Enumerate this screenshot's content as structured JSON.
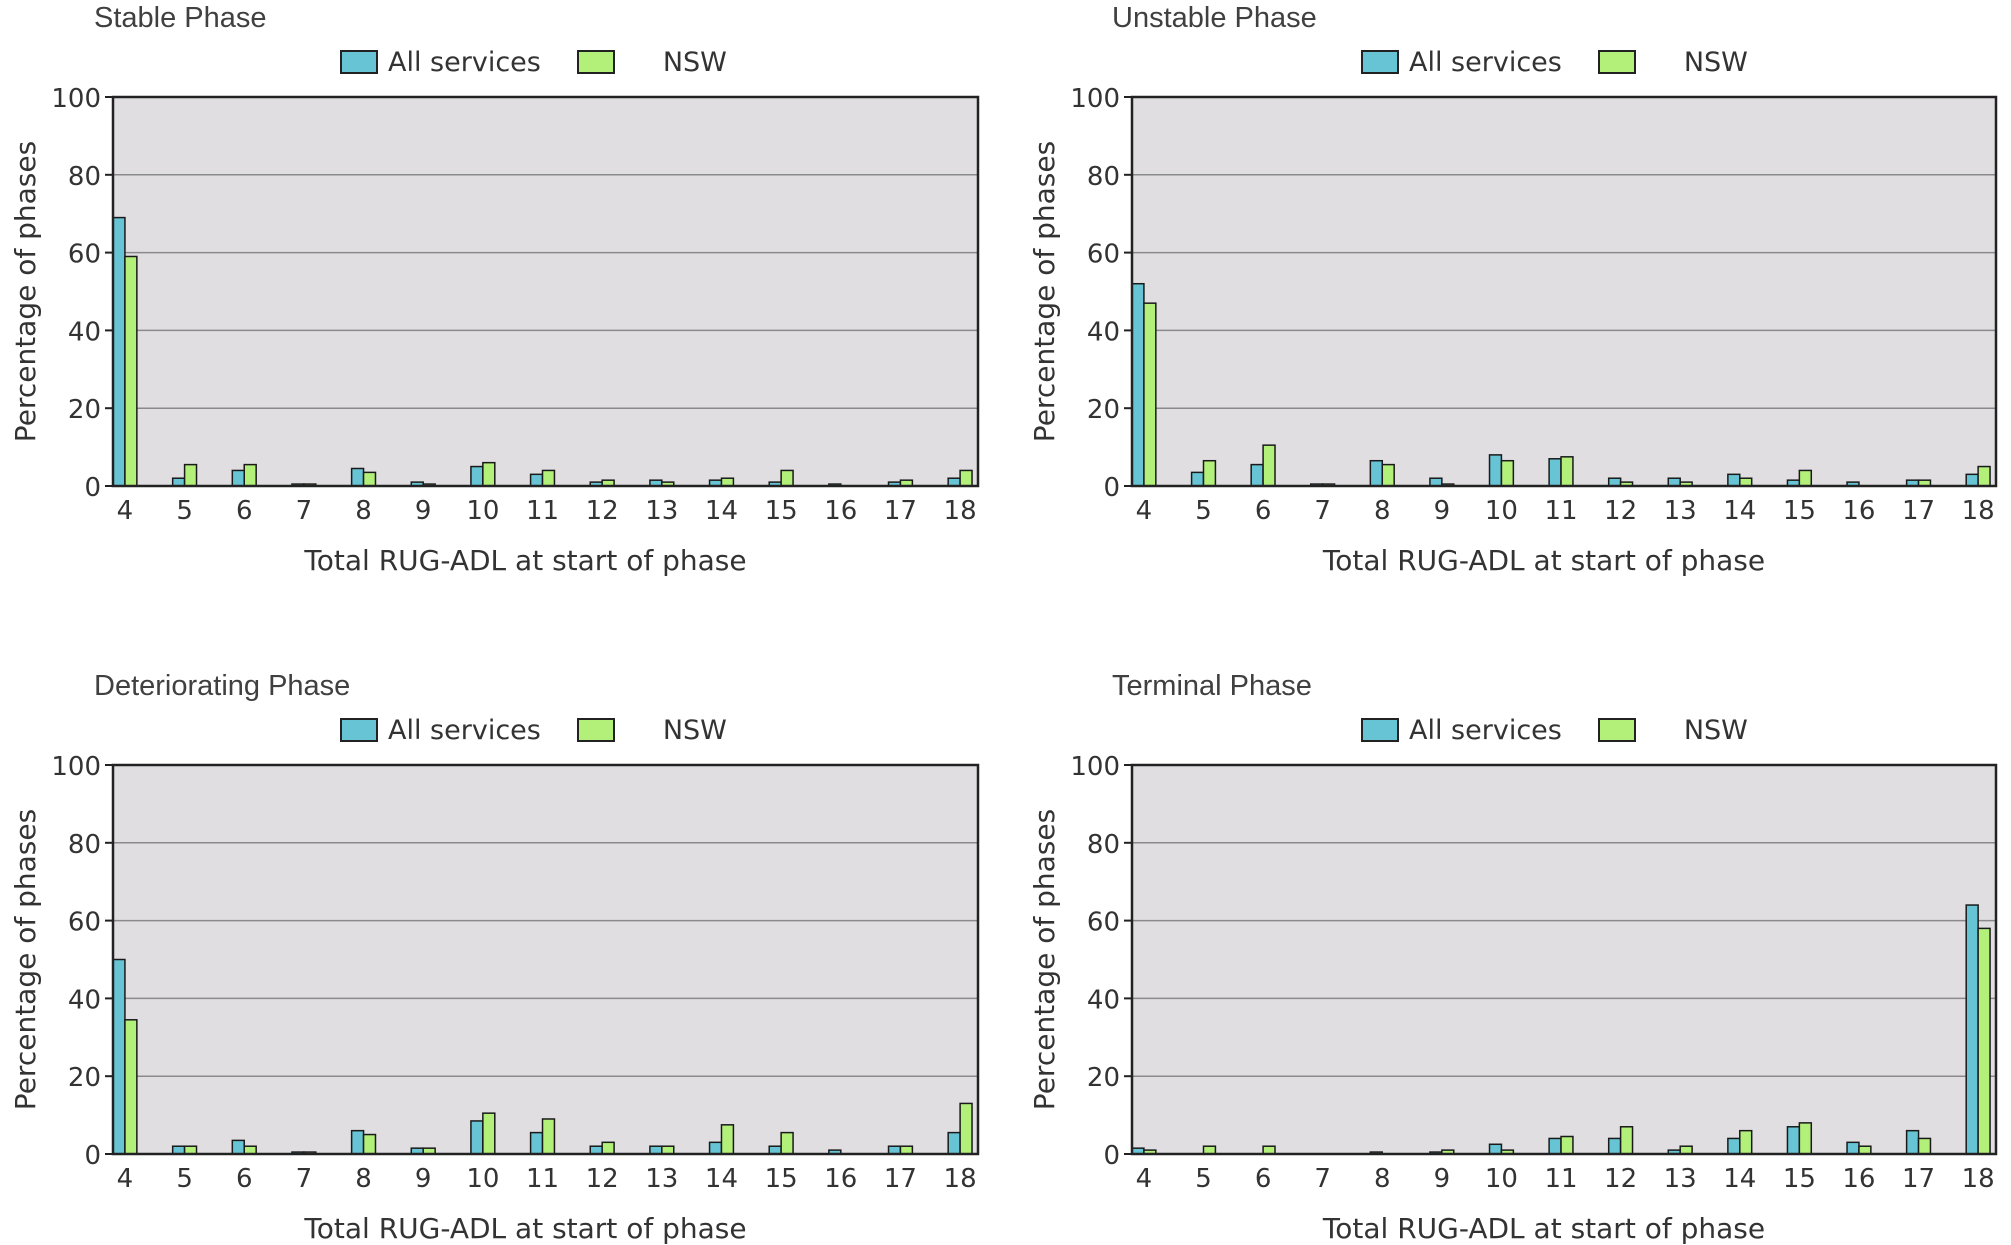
{
  "figure": {
    "colors": {
      "all_services": "#66c4d4",
      "nsw": "#b3f07a",
      "plot_bg": "#e0dee1",
      "grid": "#8a8a8a"
    },
    "legend": [
      "All services",
      "NSW"
    ]
  },
  "chart_data": [
    {
      "type": "bar",
      "title": "Stable Phase",
      "xlabel": "Total RUG-ADL at start of phase",
      "ylabel": "Percentage of phases",
      "ylim": [
        0,
        100
      ],
      "yticks": [
        0,
        20,
        40,
        60,
        80,
        100
      ],
      "categories": [
        "4",
        "5",
        "6",
        "7",
        "8",
        "9",
        "10",
        "11",
        "12",
        "13",
        "14",
        "15",
        "16",
        "17",
        "18"
      ],
      "series": [
        {
          "name": "All services",
          "values": [
            69,
            2,
            4,
            0.5,
            4.5,
            1,
            5,
            3,
            1,
            1.5,
            1.5,
            1,
            0.5,
            1,
            2
          ]
        },
        {
          "name": "NSW",
          "values": [
            59,
            5.5,
            5.5,
            0.5,
            3.5,
            0.5,
            6,
            4,
            1.5,
            1,
            2,
            4,
            0,
            1.5,
            4
          ]
        }
      ]
    },
    {
      "type": "bar",
      "title": "Unstable Phase",
      "xlabel": "Total RUG-ADL at start of phase",
      "ylabel": "Percentage of phases",
      "ylim": [
        0,
        100
      ],
      "yticks": [
        0,
        20,
        40,
        60,
        80,
        100
      ],
      "categories": [
        "4",
        "5",
        "6",
        "7",
        "8",
        "9",
        "10",
        "11",
        "12",
        "13",
        "14",
        "15",
        "16",
        "17",
        "18"
      ],
      "series": [
        {
          "name": "All services",
          "values": [
            52,
            3.5,
            5.5,
            0.5,
            6.5,
            2,
            8,
            7,
            2,
            2,
            3,
            1.5,
            1,
            1.5,
            3
          ]
        },
        {
          "name": "NSW",
          "values": [
            47,
            6.5,
            10.5,
            0.5,
            5.5,
            0.5,
            6.5,
            7.5,
            1,
            1,
            2,
            4,
            0,
            1.5,
            5
          ]
        }
      ]
    },
    {
      "type": "bar",
      "title": "Deteriorating Phase",
      "xlabel": "Total RUG-ADL at start of phase",
      "ylabel": "Percentage of phases",
      "ylim": [
        0,
        100
      ],
      "yticks": [
        0,
        20,
        40,
        60,
        80,
        100
      ],
      "categories": [
        "4",
        "5",
        "6",
        "7",
        "8",
        "9",
        "10",
        "11",
        "12",
        "13",
        "14",
        "15",
        "16",
        "17",
        "18"
      ],
      "series": [
        {
          "name": "All services",
          "values": [
            50,
            2,
            3.5,
            0.5,
            6,
            1.5,
            8.5,
            5.5,
            2,
            2,
            3,
            2,
            1,
            2,
            5.5
          ]
        },
        {
          "name": "NSW",
          "values": [
            34.5,
            2,
            2,
            0.5,
            5,
            1.5,
            10.5,
            9,
            3,
            2,
            7.5,
            5.5,
            0,
            2,
            13
          ]
        }
      ]
    },
    {
      "type": "bar",
      "title": "Terminal Phase",
      "xlabel": "Total RUG-ADL at start of phase",
      "ylabel": "Percentage of phases",
      "ylim": [
        0,
        100
      ],
      "yticks": [
        0,
        20,
        40,
        60,
        80,
        100
      ],
      "categories": [
        "4",
        "5",
        "6",
        "7",
        "8",
        "9",
        "10",
        "11",
        "12",
        "13",
        "14",
        "15",
        "16",
        "17",
        "18"
      ],
      "series": [
        {
          "name": "All services",
          "values": [
            1.5,
            0,
            0,
            0,
            0.5,
            0.5,
            2.5,
            4,
            4,
            1,
            4,
            7,
            3,
            6,
            64
          ]
        },
        {
          "name": "NSW",
          "values": [
            1,
            2,
            2,
            0,
            0,
            1,
            1,
            4.5,
            7,
            2,
            6,
            8,
            2,
            4,
            58
          ]
        }
      ]
    }
  ]
}
